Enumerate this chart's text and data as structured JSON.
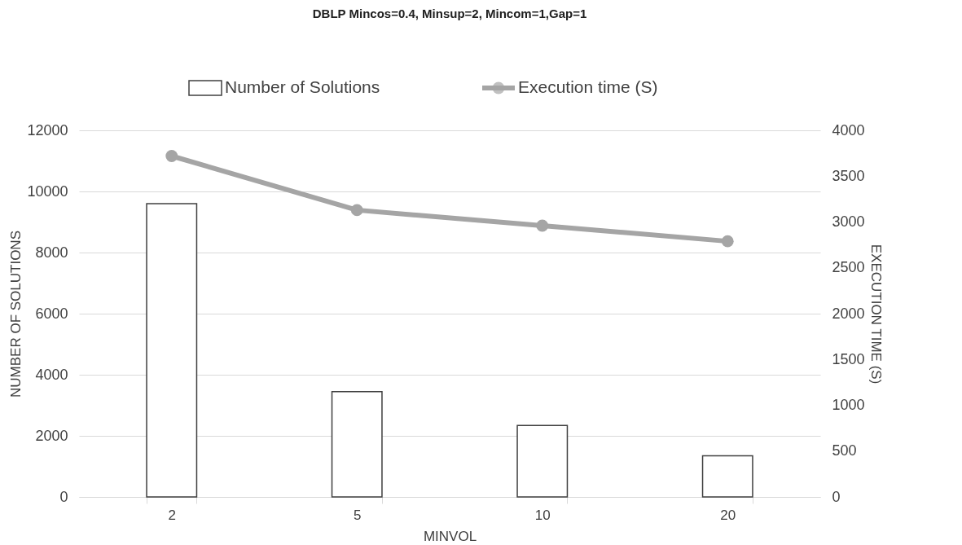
{
  "chart_data": {
    "type": "bar",
    "title": "DBLP Mincos=0.4, Minsup=2, Mincom=1,Gap=1",
    "xlabel": "MINVOL",
    "ylabel": "NUMBER OF SOLUTIONS",
    "y2label": "EXECUTION TIME (S)",
    "categories": [
      "2",
      "5",
      "10",
      "20"
    ],
    "series": [
      {
        "name": "Number of Solutions",
        "color": "#ffffff",
        "values": [
          9600,
          3450,
          2340,
          1350
        ]
      },
      {
        "name": "Execution time (S)",
        "type": "line",
        "axis": "y2",
        "color": "#a5a5a5",
        "values": [
          3720,
          3130,
          2960,
          2790
        ]
      }
    ],
    "ylim": [
      0,
      12000
    ],
    "yticks": [
      0,
      2000,
      4000,
      6000,
      8000,
      10000,
      12000
    ],
    "y2lim": [
      0,
      4000
    ],
    "y2ticks": [
      0,
      500,
      1000,
      1500,
      2000,
      2500,
      3000,
      3500,
      4000
    ],
    "grid": "y",
    "legend": "top",
    "marker": "circle",
    "line_style": "solid"
  }
}
